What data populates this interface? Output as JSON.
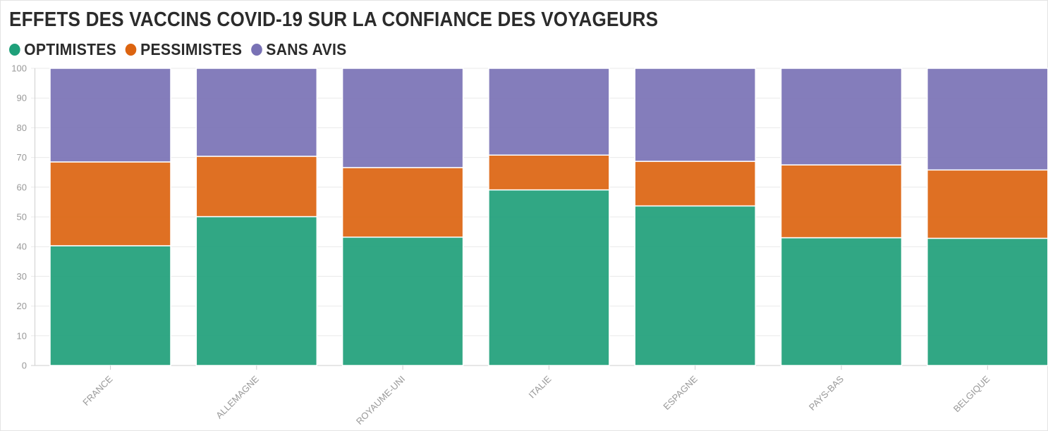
{
  "chart_data": {
    "type": "bar",
    "stacked": true,
    "title": "EFFETS DES VACCINS COVID-19 SUR LA CONFIANCE DES VOYAGEURS",
    "categories": [
      "FRANCE",
      "ALLEMAGNE",
      "ROYAUME-UNI",
      "ITALIE",
      "ESPAGNE",
      "PAYS-BAS",
      "BELGIQUE"
    ],
    "series": [
      {
        "name": "OPTIMISTES",
        "color": "#1fa07a",
        "values": [
          40.3,
          50.1,
          43.2,
          59.1,
          53.7,
          43.0,
          42.8
        ]
      },
      {
        "name": "PESSIMISTES",
        "color": "#dc6410",
        "values": [
          28.2,
          20.3,
          23.4,
          11.7,
          15.0,
          24.5,
          23.0
        ]
      },
      {
        "name": "SANS AVIS",
        "color": "#7972b5",
        "values": [
          31.5,
          29.6,
          33.4,
          29.2,
          31.3,
          32.5,
          34.2
        ]
      }
    ],
    "ylim": [
      0,
      100
    ],
    "yticks": [
      0,
      10,
      20,
      30,
      40,
      50,
      60,
      70,
      80,
      90,
      100
    ],
    "grid": true,
    "legend_position": "top-left"
  }
}
